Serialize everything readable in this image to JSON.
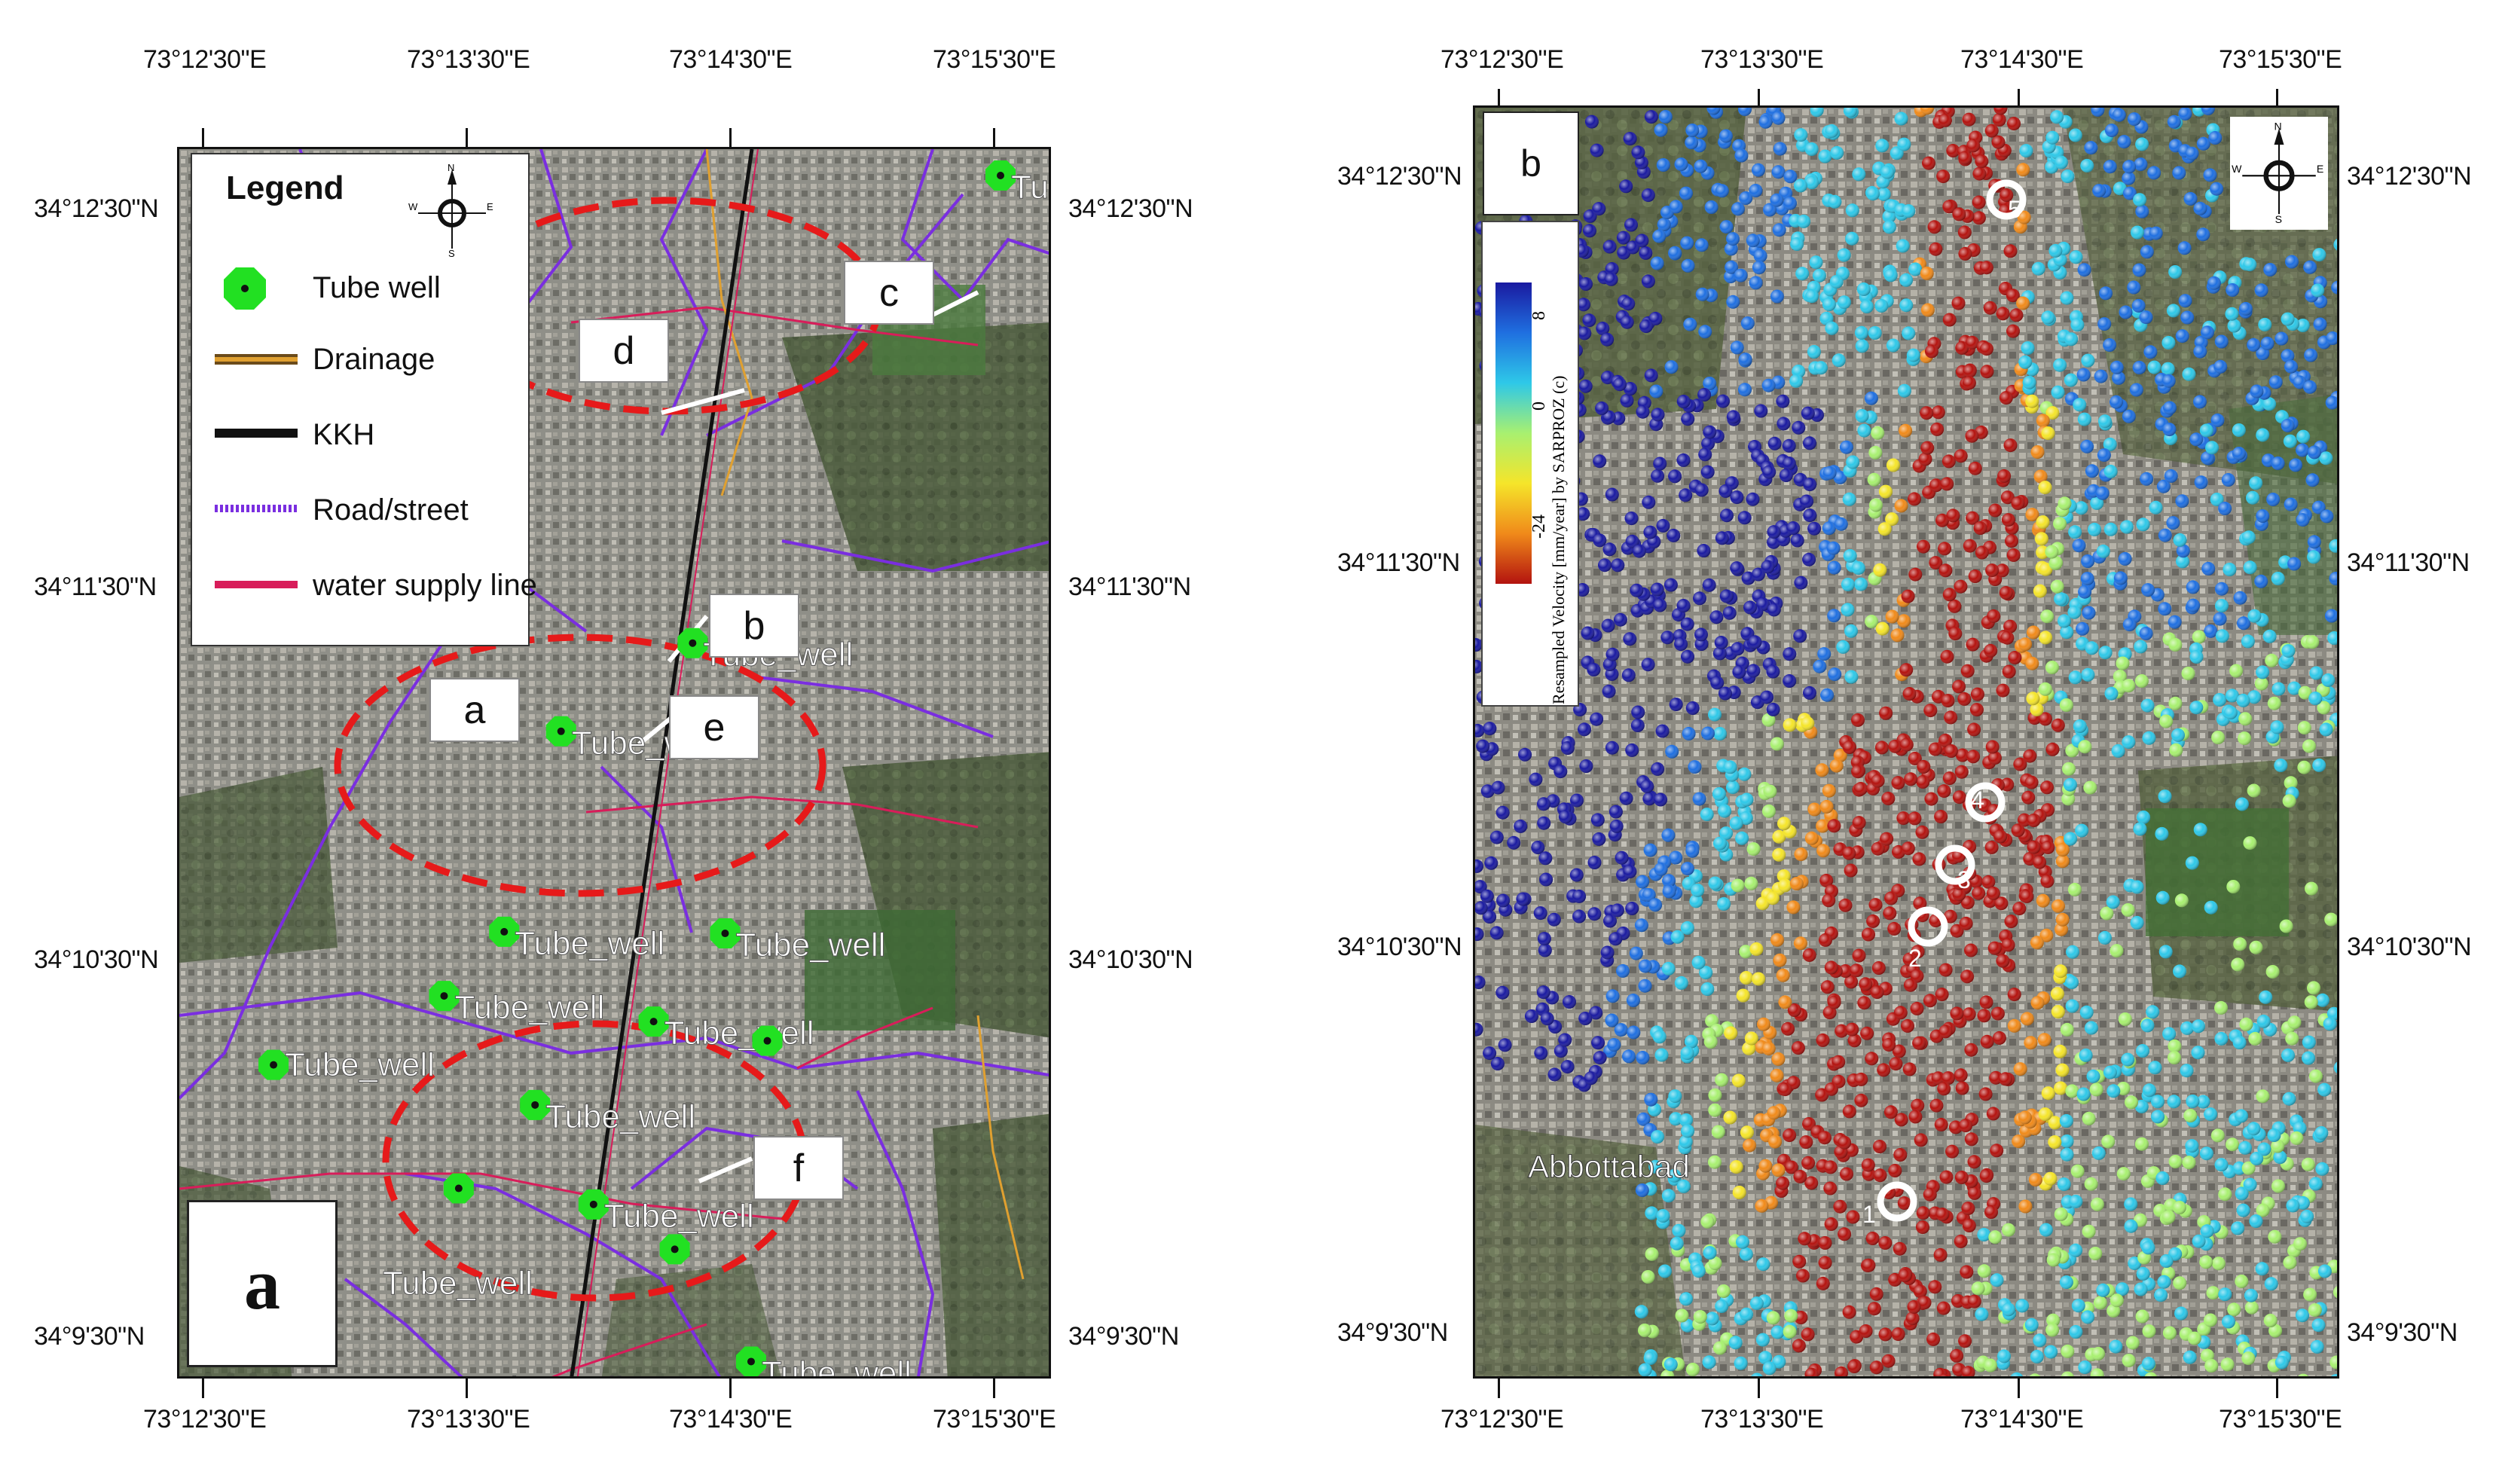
{
  "panel_a": {
    "label": "a",
    "top_ticks": [
      "73°12'30\"E",
      "73°13'30\"E",
      "73°14'30\"E",
      "73°15'30\"E"
    ],
    "bottom_ticks": [
      "73°12'30\"E",
      "73°13'30\"E",
      "73°14'30\"E",
      "73°15'30\"E"
    ],
    "left_ticks": [
      "34°12'30\"N",
      "34°11'30\"N",
      "34°10'30\"N",
      "34°9'30\"N"
    ],
    "right_ticks": [
      "34°12'30\"N",
      "34°11'30\"N",
      "34°10'30\"N",
      "34°9'30\"N"
    ],
    "legend": {
      "title": "Legend",
      "items": [
        {
          "label": "Tube well",
          "symbol": "green-octagon"
        },
        {
          "label": "Drainage",
          "symbol": "orange-double-line"
        },
        {
          "label": "KKH",
          "symbol": "black-line"
        },
        {
          "label": "Road/street",
          "symbol": "purple-dashed-line"
        },
        {
          "label": "water supply line",
          "symbol": "crimson-line"
        }
      ]
    },
    "north_arrow": {
      "n": "N",
      "s": "S",
      "e": "E",
      "w": "W"
    },
    "zone_labels": [
      "a",
      "b",
      "c",
      "d",
      "e",
      "f"
    ],
    "tube_well_label": "Tube_well",
    "colors": {
      "tube_well": "#22e022",
      "kkh": "#111111",
      "road": "#7a2ee0",
      "water": "#d81d5a",
      "drainage": "#e0a030",
      "ellipse": "#e61a1a"
    }
  },
  "panel_b": {
    "label": "b",
    "top_ticks": [
      "73°12'30\"E",
      "73°13'30\"E",
      "73°14'30\"E",
      "73°15'30\"E"
    ],
    "bottom_ticks": [
      "73°12'30\"E",
      "73°13'30\"E",
      "73°14'30\"E",
      "73°15'30\"E"
    ],
    "left_ticks": [
      "34°12'30\"N",
      "34°11'30\"N",
      "34°10'30\"N",
      "34°9'30\"N"
    ],
    "right_ticks": [
      "34°12'30\"N",
      "34°11'30\"N",
      "34°10'30\"N",
      "34°9'30\"N"
    ],
    "north_arrow": {
      "n": "N",
      "s": "S",
      "e": "E",
      "w": "W"
    },
    "colorbar": {
      "ticks": [
        "8",
        "0",
        "-24"
      ],
      "caption": "Resampled Velocity [mm/year] by SARPROZ (c)",
      "colors": [
        "#1a1aa0",
        "#1f6fe0",
        "#2ec8e8",
        "#a8f070",
        "#f5e52a",
        "#f08a1a",
        "#b3130f"
      ]
    },
    "place_name": "Abbottabad",
    "point_labels": [
      "1",
      "2",
      "3",
      "4",
      "5"
    ]
  }
}
